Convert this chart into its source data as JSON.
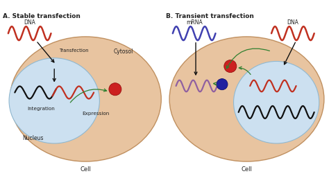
{
  "bg_color": "#ffffff",
  "cell_color": "#e8c4a0",
  "nucleus_color": "#cce0f0",
  "cell_edge_color": "#c09060",
  "nucleus_edge_color": "#90b8d0",
  "title_A": "A. Stable transfection",
  "title_B": "B. Transient transfection",
  "dna_color": "#c03020",
  "mrna_color": "#4040b0",
  "black_wave_color": "#101010",
  "purple_wave_color": "#9060a0",
  "arrow_color": "#101010",
  "green_arrow_color": "#308030",
  "red_dot_color": "#cc2020",
  "blue_dot_color": "#2020a0",
  "label_color": "#202020",
  "cell_label": "Cell",
  "cytosol_label": "Cytosol",
  "nucleus_label": "Nucleus",
  "integration_label": "Integration",
  "expression_label": "Expression",
  "transfection_label": "Transfection",
  "dna_label": "DNA",
  "mrna_label": "mRNA"
}
